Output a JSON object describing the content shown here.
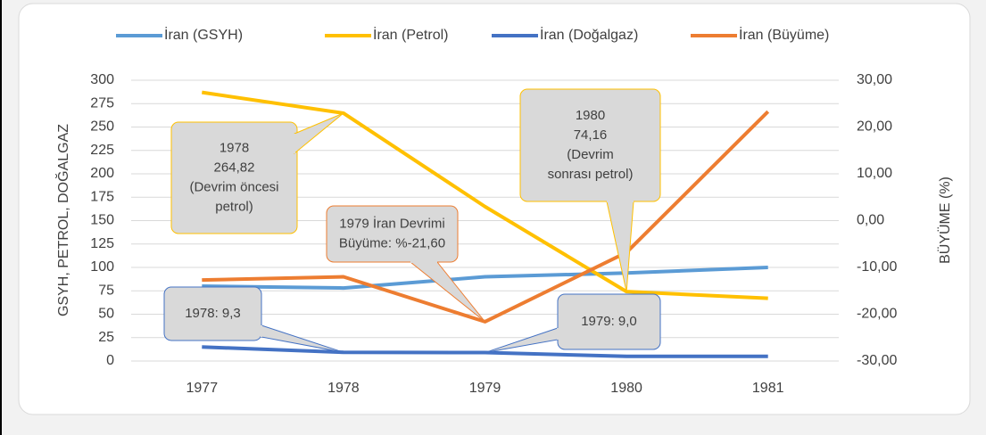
{
  "chart_data": {
    "type": "line",
    "categories": [
      "1977",
      "1978",
      "1979",
      "1980",
      "1981"
    ],
    "series": [
      {
        "name": "İran (GSYH)",
        "color": "#5b9bd5",
        "values": [
          80,
          78,
          90,
          94,
          100
        ]
      },
      {
        "name": "İran (Petrol)",
        "color": "#ffc000",
        "values": [
          287,
          264.82,
          165,
          74.16,
          67
        ]
      },
      {
        "name": "İran (Doğalgaz)",
        "color": "#4472c4",
        "values": [
          15,
          9.3,
          9.0,
          5,
          5
        ]
      },
      {
        "name": "İran (Büyüme)",
        "color": "#ed7d31",
        "axis": "y2",
        "values": [
          -12.7,
          -12,
          -21.6,
          -6.8,
          23.3
        ]
      }
    ],
    "ylabel": "GSYH, PETROL, DOĞALGAZ",
    "y2label": "BÜYÜME (%)",
    "ylim": [
      0,
      300
    ],
    "yticks": [
      0,
      25,
      50,
      75,
      100,
      125,
      150,
      175,
      200,
      225,
      250,
      275,
      300
    ],
    "y2lim": [
      -30,
      30
    ],
    "y2ticks": [
      {
        "value": -30,
        "label": "-30,00"
      },
      {
        "value": -20,
        "label": "-20,00"
      },
      {
        "value": -10,
        "label": "-10,00"
      },
      {
        "value": 0,
        "label": "0,00"
      },
      {
        "value": 10,
        "label": "10,00"
      },
      {
        "value": 20,
        "label": "20,00"
      },
      {
        "value": 30,
        "label": "30,00"
      }
    ],
    "grid": true,
    "legend": "top",
    "annotations": [
      {
        "lines": [
          "1978",
          "264,82",
          "(Devrim öncesi",
          "petrol)"
        ]
      },
      {
        "lines": [
          "1979 İran Devrimi",
          "Büyüme: %-21,60"
        ]
      },
      {
        "lines": [
          "1980",
          "74,16",
          "(Devrim",
          "sonrası petrol)"
        ]
      },
      {
        "lines": [
          "1978: 9,3"
        ]
      },
      {
        "lines": [
          "1979: 9,0"
        ]
      }
    ]
  }
}
